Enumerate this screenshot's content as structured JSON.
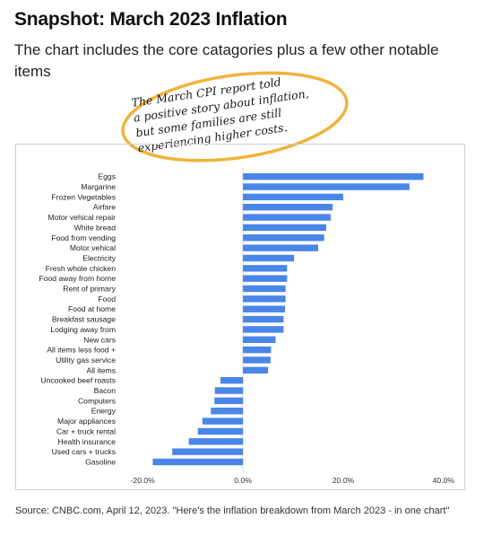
{
  "header": {
    "title": "Snapshot: March 2023 Inflation",
    "subtitle": "The chart includes the core catagories plus a few other notable items"
  },
  "annotation": {
    "lines": [
      "The March CPI report told",
      "a positive story about inflation,",
      "but some families are still",
      "experiencing higher costs."
    ],
    "oval_color": "#f0b43c"
  },
  "source": "Source: CNBC.com, April 12, 2023. \"Here's the inflation breakdown from March 2023 - in one chart\"",
  "chart_data": {
    "type": "bar",
    "orientation": "horizontal",
    "bar_color": "#4a86e8",
    "categories": [
      "Eggs",
      "Margarine",
      "Frozen Vegetables",
      "Airfare",
      "Motor vehical repair",
      "White bread",
      "Food from vending",
      "Motor vehical",
      "Electricity",
      "Fresh whole chicken",
      "Food away from home",
      "Rent of primary",
      "Food",
      "Food at home",
      "Breakfast sausage",
      "Lodging away from",
      "New cars",
      "All items less food +",
      "Utility gas service",
      "All items",
      "Uncooked beef roasts",
      "Bacon",
      "Computers",
      "Energy",
      "Major appliances",
      "Car + truck rental",
      "Health insurance",
      "Used cars + trucks",
      "Gasoline"
    ],
    "values": [
      36.0,
      33.2,
      20.0,
      17.9,
      17.5,
      16.6,
      16.2,
      15.0,
      10.2,
      8.8,
      8.8,
      8.5,
      8.5,
      8.4,
      8.1,
      8.1,
      6.5,
      5.6,
      5.5,
      5.0,
      -4.5,
      -5.6,
      -5.7,
      -6.4,
      -8.1,
      -9.0,
      -10.8,
      -14.1,
      -18.0
    ],
    "xlim": [
      -22,
      42
    ],
    "xticks": [
      -20,
      0,
      20,
      40
    ],
    "xtick_labels": [
      "-20.0%",
      "0.0%",
      "20.0%",
      "40.0%"
    ],
    "grid": false
  }
}
